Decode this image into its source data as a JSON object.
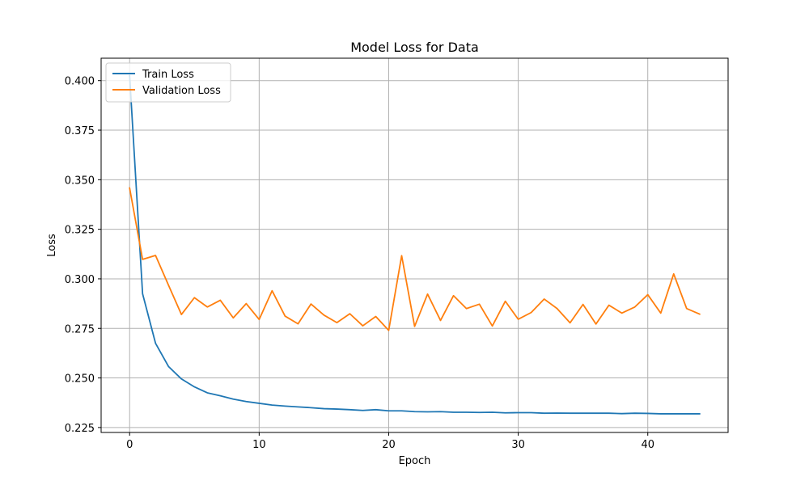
{
  "chart_data": {
    "type": "line",
    "title": "Model Loss for Data",
    "xlabel": "Epoch",
    "ylabel": "Loss",
    "xlim": [
      -2.2,
      46.2
    ],
    "ylim": [
      0.2225,
      0.4113
    ],
    "xticks": [
      0,
      10,
      20,
      30,
      40
    ],
    "yticks": [
      0.225,
      0.25,
      0.275,
      0.3,
      0.325,
      0.35,
      0.375,
      0.4
    ],
    "ytick_labels": [
      "0.225",
      "0.250",
      "0.275",
      "0.300",
      "0.325",
      "0.350",
      "0.375",
      "0.400"
    ],
    "grid": true,
    "legend_position": "upper left",
    "series": [
      {
        "name": "Train Loss",
        "color": "#1f77b4",
        "x": [
          0,
          1,
          2,
          3,
          4,
          5,
          6,
          7,
          8,
          9,
          10,
          11,
          12,
          13,
          14,
          15,
          16,
          17,
          18,
          19,
          20,
          21,
          22,
          23,
          24,
          25,
          26,
          27,
          28,
          29,
          30,
          31,
          32,
          33,
          34,
          35,
          36,
          37,
          38,
          39,
          40,
          41,
          42,
          43,
          44
        ],
        "values": [
          0.4025,
          0.2925,
          0.2675,
          0.2558,
          0.2495,
          0.2455,
          0.2425,
          0.241,
          0.2393,
          0.2381,
          0.2372,
          0.2363,
          0.2358,
          0.2354,
          0.235,
          0.2345,
          0.2343,
          0.234,
          0.2336,
          0.234,
          0.2334,
          0.2334,
          0.233,
          0.2329,
          0.233,
          0.2327,
          0.2327,
          0.2326,
          0.2327,
          0.2324,
          0.2325,
          0.2325,
          0.2322,
          0.2323,
          0.2322,
          0.2322,
          0.2322,
          0.2322,
          0.232,
          0.2322,
          0.2321,
          0.2319,
          0.2319,
          0.2319,
          0.2319
        ]
      },
      {
        "name": "Validation Loss",
        "color": "#ff7f0e",
        "x": [
          0,
          1,
          2,
          3,
          4,
          5,
          6,
          7,
          8,
          9,
          10,
          11,
          12,
          13,
          14,
          15,
          16,
          17,
          18,
          19,
          20,
          21,
          22,
          23,
          24,
          25,
          26,
          27,
          28,
          29,
          30,
          31,
          32,
          33,
          34,
          35,
          36,
          37,
          38,
          39,
          40,
          41,
          42,
          43,
          44
        ],
        "values": [
          0.3458,
          0.3098,
          0.3118,
          0.2968,
          0.282,
          0.2905,
          0.2858,
          0.2892,
          0.2803,
          0.2875,
          0.2795,
          0.294,
          0.2812,
          0.2773,
          0.2873,
          0.2817,
          0.2779,
          0.2824,
          0.2763,
          0.281,
          0.274,
          0.3117,
          0.276,
          0.2923,
          0.279,
          0.2915,
          0.285,
          0.2872,
          0.2762,
          0.2887,
          0.2796,
          0.283,
          0.2898,
          0.285,
          0.2778,
          0.2871,
          0.2772,
          0.2867,
          0.2827,
          0.2858,
          0.292,
          0.2827,
          0.3025,
          0.285,
          0.2822
        ]
      }
    ]
  }
}
